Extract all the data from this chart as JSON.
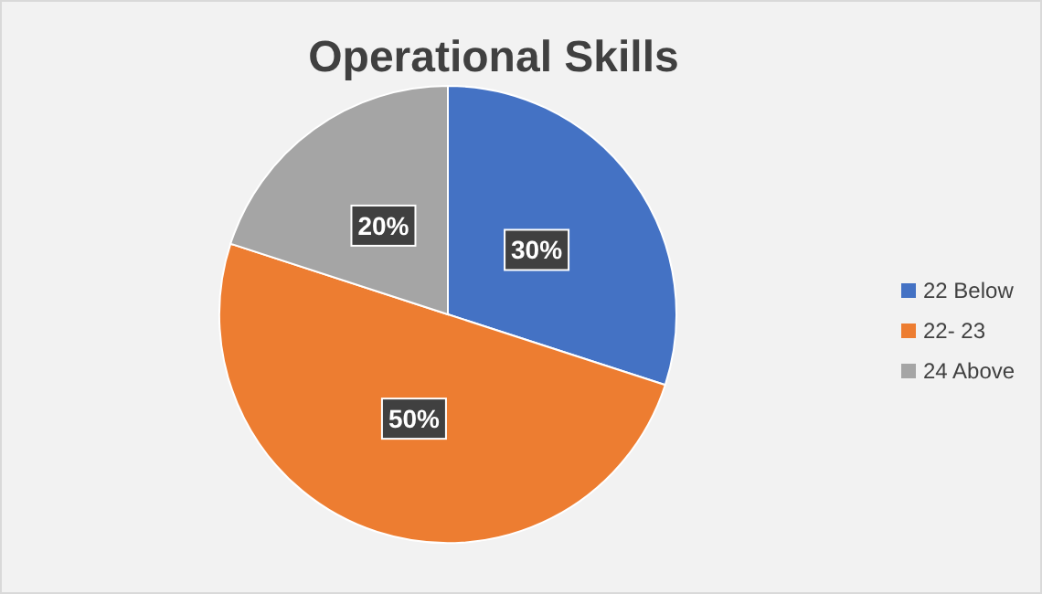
{
  "chart_data": {
    "type": "pie",
    "title": "Operational Skills",
    "categories": [
      "22 Below",
      "22- 23",
      "24 Above"
    ],
    "values": [
      30,
      50,
      20
    ],
    "colors": [
      "#4472c4",
      "#ed7d31",
      "#a5a5a5"
    ],
    "value_labels": [
      "30%",
      "50%",
      "20%"
    ],
    "legend": "right"
  }
}
